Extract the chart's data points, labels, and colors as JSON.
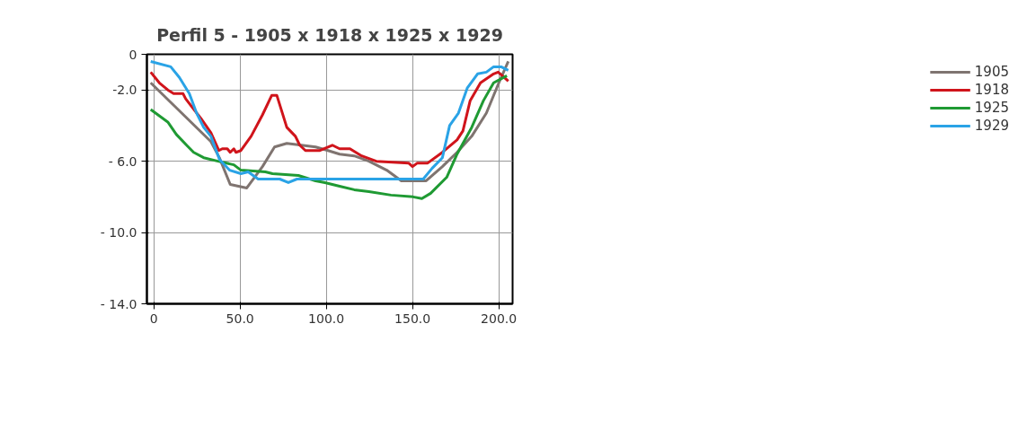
{
  "chart_data": {
    "type": "line",
    "title": "Perfil 5 - 1905 x 1918 x 1925 x 1929",
    "xlim": [
      -4,
      208
    ],
    "ylim": [
      -14,
      0
    ],
    "xticks": [
      0,
      {
        "value": 50,
        "label": "50.0"
      },
      {
        "value": 100,
        "label": "100.0"
      },
      {
        "value": 150,
        "label": "150.0"
      },
      {
        "value": 200,
        "label": "200.0"
      }
    ],
    "yticks": [
      0,
      {
        "value": -2,
        "label": "-2.0"
      },
      {
        "value": -6,
        "label": "- 6.0"
      },
      {
        "value": -10,
        "label": "- 10.0"
      },
      {
        "value": -14,
        "label": "- 14.0"
      }
    ],
    "grid": true,
    "legend": "right",
    "marker": "none",
    "line_style": "solid",
    "series": [
      {
        "name": "1905",
        "color": "#7f7470",
        "x": [
          -1.8,
          33.1,
          38,
          44.3,
          53.9,
          63,
          70,
          77.1,
          85.5,
          93.8,
          101,
          107.7,
          116.2,
          124.7,
          135,
          143.5,
          157.9,
          167.3,
          175.8,
          184.3,
          192.8,
          199.6,
          205.5
        ],
        "values": [
          -1.6,
          -4.9,
          -5.8,
          -7.3,
          -7.5,
          -6.3,
          -5.2,
          -5.0,
          -5.1,
          -5.2,
          -5.4,
          -5.6,
          -5.7,
          -6.0,
          -6.5,
          -7.1,
          -7.1,
          -6.3,
          -5.5,
          -4.6,
          -3.3,
          -1.7,
          -0.4
        ]
      },
      {
        "name": "1918",
        "color": "#d0141b",
        "x": [
          -1.8,
          3.2,
          8.1,
          11.5,
          16.9,
          18.5,
          27.3,
          33.1,
          37.7,
          39.7,
          42.6,
          44.3,
          46.4,
          47.6,
          50.5,
          56.4,
          63,
          68.4,
          71.3,
          77.1,
          82.1,
          84.6,
          87.9,
          96.3,
          103.5,
          107.7,
          113.7,
          120.5,
          129,
          147.7,
          150,
          152.8,
          158.8,
          167.3,
          175.8,
          179.2,
          183.4,
          189.4,
          197,
          199.6,
          202.1,
          205.5
        ],
        "values": [
          -1.0,
          -1.6,
          -2.0,
          -2.2,
          -2.2,
          -2.5,
          -3.6,
          -4.4,
          -5.4,
          -5.3,
          -5.3,
          -5.5,
          -5.3,
          -5.5,
          -5.4,
          -4.6,
          -3.4,
          -2.3,
          -2.3,
          -4.1,
          -4.6,
          -5.1,
          -5.4,
          -5.4,
          -5.1,
          -5.3,
          -5.3,
          -5.7,
          -6.0,
          -6.1,
          -6.3,
          -6.1,
          -6.1,
          -5.5,
          -4.8,
          -4.3,
          -2.6,
          -1.6,
          -1.1,
          -1.0,
          -1.2,
          -1.5
        ]
      },
      {
        "name": "1925",
        "color": "#1f9a33",
        "x": [
          -1.8,
          8.1,
          13.1,
          19,
          23.1,
          28.9,
          37.2,
          46.4,
          50.5,
          64.7,
          68.8,
          83.8,
          93.8,
          99.2,
          107.7,
          116.2,
          124.7,
          137.5,
          150.3,
          155.4,
          160.5,
          169.8,
          175.8,
          184.3,
          191.1,
          197,
          204.7
        ],
        "values": [
          -3.1,
          -3.8,
          -4.5,
          -5.1,
          -5.5,
          -5.8,
          -6.0,
          -6.2,
          -6.5,
          -6.6,
          -6.7,
          -6.8,
          -7.1,
          -7.2,
          -7.4,
          -7.6,
          -7.7,
          -7.9,
          -8.0,
          -8.1,
          -7.8,
          -6.9,
          -5.6,
          -4.1,
          -2.6,
          -1.6,
          -1.2
        ]
      },
      {
        "name": "1929",
        "color": "#2aa3e6",
        "x": [
          -1.8,
          9.8,
          14.8,
          20.6,
          24.8,
          28.9,
          33.1,
          38.1,
          43.9,
          50.5,
          54.7,
          60.5,
          73,
          78,
          83,
          103.7,
          124.7,
          156.2,
          161.3,
          167.3,
          171.5,
          176.6,
          181.7,
          187.7,
          192.8,
          197,
          201.3,
          205.5
        ],
        "values": [
          -0.4,
          -0.7,
          -1.3,
          -2.2,
          -3.3,
          -4.1,
          -4.6,
          -5.9,
          -6.5,
          -6.7,
          -6.6,
          -7.0,
          -7.0,
          -7.2,
          -7.0,
          -7.0,
          -7.0,
          -7.0,
          -6.4,
          -5.8,
          -4.0,
          -3.3,
          -1.9,
          -1.1,
          -1.0,
          -0.7,
          -0.7,
          -0.9
        ]
      }
    ]
  }
}
